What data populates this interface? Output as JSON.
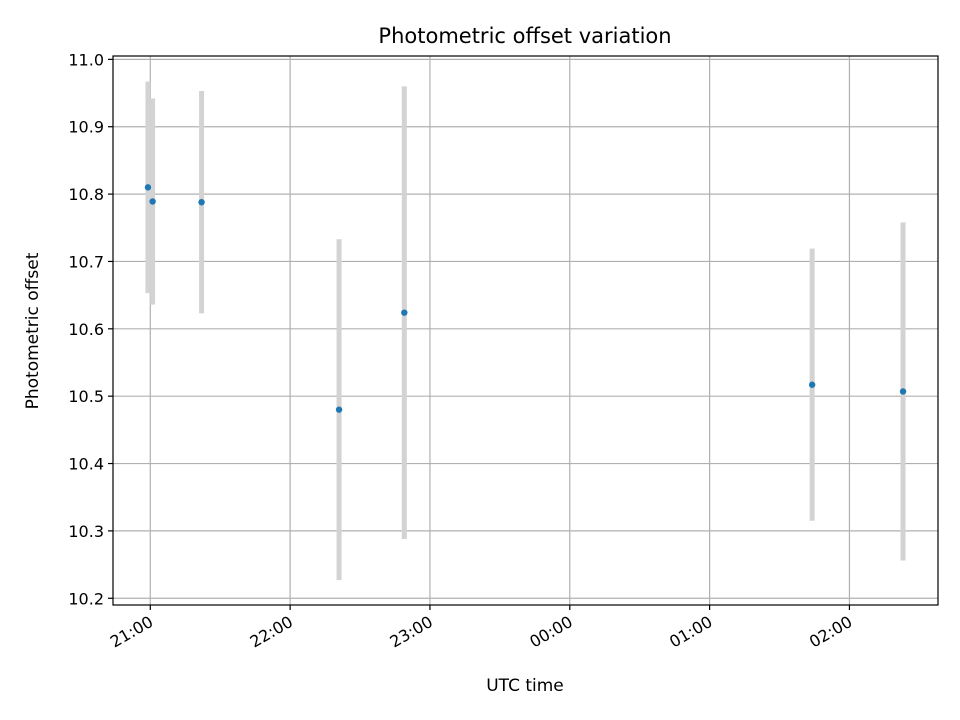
{
  "chart_data": {
    "type": "scatter",
    "title": "Photometric offset variation",
    "xlabel": "UTC time",
    "ylabel": "Photometric offset",
    "x_tick_labels": [
      "21:00",
      "22:00",
      "23:00",
      "00:00",
      "01:00",
      "02:00"
    ],
    "y_tick_labels": [
      "10.2",
      "10.3",
      "10.4",
      "10.5",
      "10.6",
      "10.7",
      "10.8",
      "10.9",
      "11.0"
    ],
    "y_ticks": [
      10.2,
      10.3,
      10.4,
      10.5,
      10.6,
      10.7,
      10.8,
      10.9,
      11.0
    ],
    "ylim": [
      10.19,
      11.005
    ],
    "x_time_range": [
      "20:44",
      "02:38"
    ],
    "grid": true,
    "marker_color": "#1f77b4",
    "errorbar_color": "#d3d3d3",
    "points": [
      {
        "time": "20:59",
        "y": 10.81,
        "yerr": 0.157
      },
      {
        "time": "21:01",
        "y": 10.789,
        "yerr": 0.153
      },
      {
        "time": "21:22",
        "y": 10.788,
        "yerr": 0.165
      },
      {
        "time": "22:21",
        "y": 10.48,
        "yerr": 0.253
      },
      {
        "time": "22:49",
        "y": 10.624,
        "yerr": 0.336
      },
      {
        "time": "01:44",
        "y": 10.517,
        "yerr": 0.202
      },
      {
        "time": "02:23",
        "y": 10.507,
        "yerr": 0.251
      }
    ]
  }
}
